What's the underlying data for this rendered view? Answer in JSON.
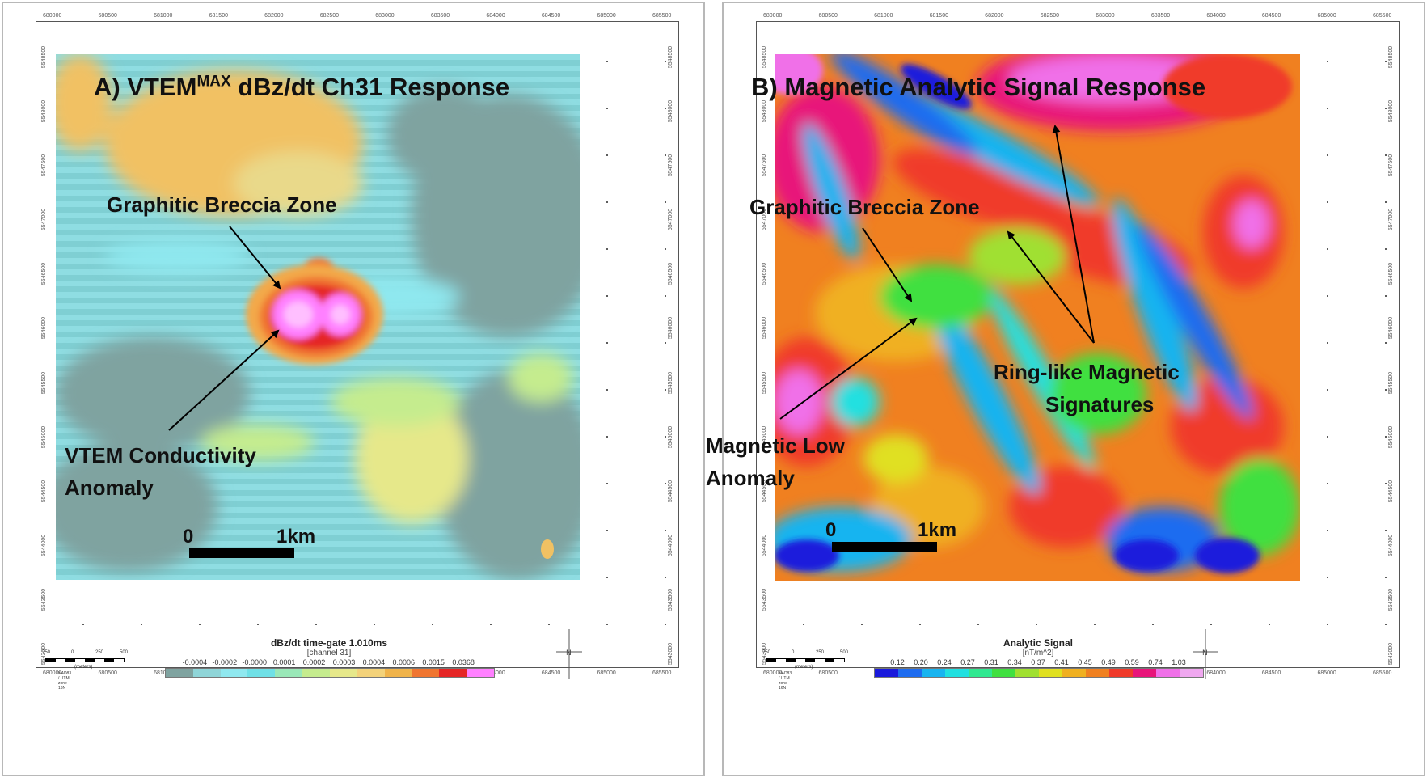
{
  "panel_a": {
    "title": "A) VTEM",
    "title_sup": "MAX",
    "title_rest": " dBz/dt Ch31 Response",
    "annotations": {
      "breccia": "Graphitic Breccia Zone",
      "vtem_line1": "VTEM Conductivity",
      "vtem_line2": "Anomaly"
    },
    "scale": {
      "zero": "0",
      "km": "1km"
    },
    "legend": {
      "title": "dBz/dt time-gate 1.010ms",
      "subtitle": "[channel 31]",
      "labels": [
        "-0.0004",
        "-0.0002",
        "-0.0000",
        "0.0001",
        "0.0002",
        "0.0003",
        "0.0004",
        "0.0006",
        "0.0015",
        "0.0368"
      ],
      "colors": [
        "#7fa3a0",
        "#8fd5d8",
        "#8fe8ef",
        "#6fe0e6",
        "#9ae8b8",
        "#c5ec8e",
        "#e6e88a",
        "#f3d27a",
        "#f0b34a",
        "#f07530",
        "#e52525",
        "#ff80ff"
      ]
    },
    "mini_scale": {
      "labels": [
        "250",
        "0",
        "250",
        "500"
      ],
      "unit": "(meters)",
      "datum": "NAD83 / UTM zone 16N"
    }
  },
  "panel_b": {
    "title": "B) Magnetic Analytic Signal Response",
    "annotations": {
      "breccia": "Graphitic Breccia Zone",
      "ring_line1": "Ring-like Magnetic",
      "ring_line2": "Signatures",
      "low_line1": "Magnetic Low",
      "low_line2": "Anomaly"
    },
    "scale": {
      "zero": "0",
      "km": "1km"
    },
    "legend": {
      "title": "Analytic Signal",
      "subtitle": "[nT/m^2]",
      "labels": [
        "0.12",
        "0.20",
        "0.24",
        "0.27",
        "0.31",
        "0.34",
        "0.37",
        "0.41",
        "0.45",
        "0.49",
        "0.59",
        "0.74",
        "1.03"
      ],
      "colors": [
        "#1a1adc",
        "#1e6cf0",
        "#18b4f0",
        "#20e0e0",
        "#30e890",
        "#40e040",
        "#a0e030",
        "#e0e020",
        "#f0b020",
        "#f08020",
        "#f03a2a",
        "#e8147a",
        "#f070e8",
        "#f0a8f0"
      ]
    },
    "mini_scale": {
      "labels": [
        "250",
        "0",
        "250",
        "500"
      ],
      "unit": "(meters)",
      "datum": "NAD83 / UTM zone 16N"
    }
  },
  "axes": {
    "x_ticks": [
      "680000",
      "680500",
      "681000",
      "681500",
      "682000",
      "682500",
      "683000",
      "683500",
      "684000",
      "684500",
      "685000",
      "685500"
    ],
    "y_ticks": [
      "5548500",
      "5548000",
      "5547500",
      "5547000",
      "5546500",
      "5546000",
      "5545500",
      "5545000",
      "5544500",
      "5544000",
      "5543500",
      "5543000"
    ]
  }
}
